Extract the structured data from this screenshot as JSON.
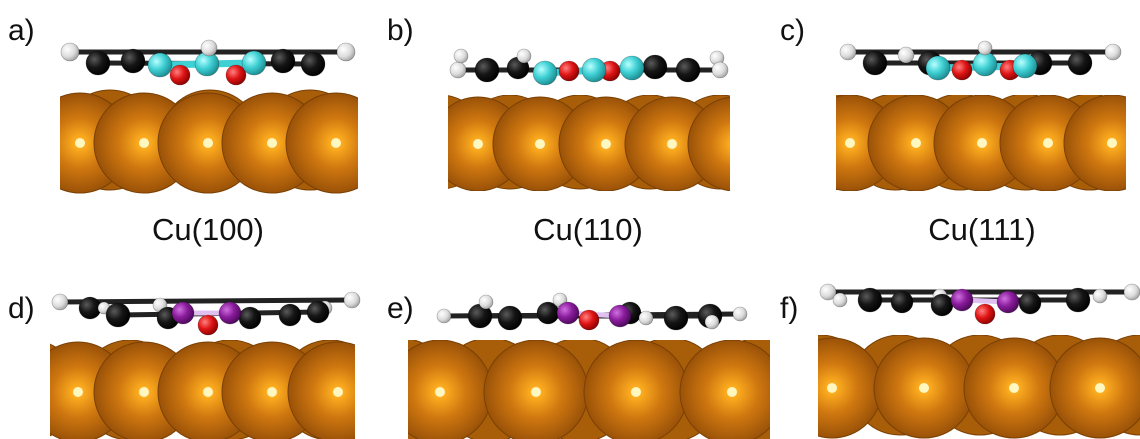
{
  "figure": {
    "panels": [
      {
        "label": "a)",
        "caption": "Cu(100)"
      },
      {
        "label": "b)",
        "caption": "Cu(110)"
      },
      {
        "label": "c)",
        "caption": "Cu(111)"
      },
      {
        "label": "d)"
      },
      {
        "label": "e)"
      },
      {
        "label": "f)"
      }
    ]
  },
  "colors": {
    "copper": "#c8700a",
    "copper_dark": "#8a4a05",
    "carbon": "#151515",
    "hydrogen": "#e8e8e8",
    "oxygen": "#e01515",
    "highlight_cyan": "#3fd0d4",
    "highlight_purple": "#8a1c9c"
  }
}
